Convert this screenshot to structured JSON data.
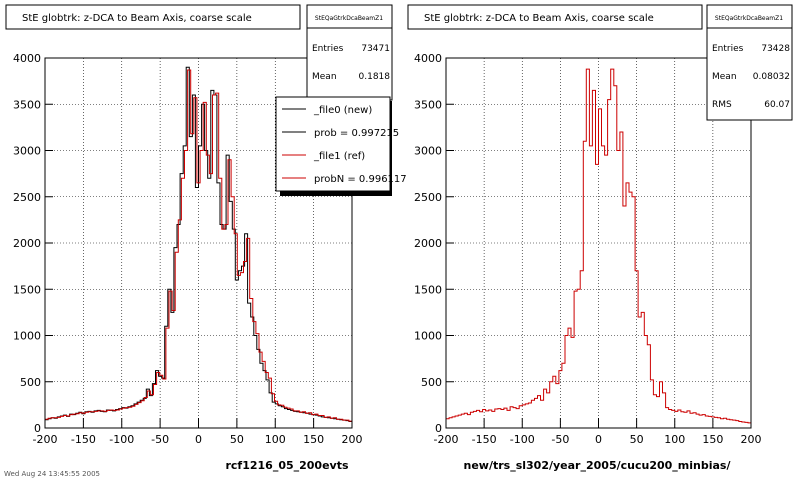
{
  "chart_data": [
    {
      "type": "line",
      "title": "StE globtrk: z-DCA to Beam Axis, coarse scale",
      "stats": {
        "name": "StEQaGtrkDcaBeamZ1",
        "rows": [
          {
            "label": "Entries",
            "value": "73471"
          },
          {
            "label": "Mean",
            "value": "0.1818"
          }
        ]
      },
      "xlabel": "rcf1216_05_200evts",
      "xlim": [
        -200,
        200
      ],
      "ylim": [
        0,
        4000
      ],
      "x_ticks": [
        "-200",
        "-150",
        "-100",
        "-50",
        "0",
        "50",
        "100",
        "150",
        "200"
      ],
      "y_ticks": [
        "0",
        "500",
        "1000",
        "1500",
        "2000",
        "2500",
        "3000",
        "3500",
        "4000"
      ],
      "legend": [
        {
          "label": "_file0 (new)",
          "color": "#000000"
        },
        {
          "label": "prob = 0.997215",
          "color": "#000000"
        },
        {
          "label": "_file1 (ref)",
          "color": "#cc0000"
        },
        {
          "label": "probN = 0.996117",
          "color": "#cc0000"
        }
      ],
      "series": [
        {
          "name": "_file0 (new)",
          "color": "#000000",
          "values": [
            90,
            100,
            110,
            105,
            120,
            130,
            140,
            125,
            150,
            145,
            160,
            170,
            155,
            175,
            180,
            170,
            185,
            190,
            180,
            175,
            195,
            190,
            185,
            200,
            210,
            220,
            215,
            230,
            240,
            260,
            280,
            300,
            320,
            420,
            350,
            480,
            620,
            560,
            540,
            1100,
            1500,
            1250,
            1950,
            2200,
            2750,
            3050,
            3900,
            3150,
            3600,
            2600,
            3050,
            3500,
            3000,
            2700,
            3650,
            3600,
            2650,
            2200,
            2150,
            2950,
            2450,
            2150,
            1600,
            1700,
            1750,
            2100,
            1350,
            1200,
            1000,
            850,
            700,
            620,
            520,
            380,
            280,
            260,
            240,
            230,
            210,
            200,
            190,
            180,
            175,
            170,
            165,
            160,
            150,
            145,
            140,
            130,
            120,
            115,
            110,
            105,
            100,
            95,
            90,
            85,
            80,
            70
          ]
        },
        {
          "name": "_file1 (ref)",
          "color": "#cc0000",
          "values": [
            95,
            105,
            110,
            110,
            115,
            125,
            135,
            130,
            145,
            150,
            155,
            165,
            160,
            170,
            175,
            175,
            180,
            185,
            185,
            180,
            190,
            195,
            190,
            195,
            205,
            215,
            220,
            225,
            235,
            255,
            275,
            295,
            330,
            400,
            360,
            470,
            600,
            570,
            530,
            1080,
            1480,
            1270,
            1900,
            2250,
            2700,
            3000,
            3870,
            3180,
            3570,
            2650,
            3000,
            3520,
            2950,
            2750,
            3600,
            3620,
            2700,
            2150,
            2200,
            2900,
            2500,
            2100,
            1650,
            1680,
            1800,
            2050,
            1400,
            1150,
            1020,
            820,
            720,
            600,
            540,
            370,
            290,
            250,
            245,
            225,
            215,
            205,
            185,
            185,
            170,
            175,
            160,
            165,
            145,
            150,
            135,
            135,
            115,
            120,
            105,
            110,
            95,
            95,
            85,
            85,
            75
          ]
        }
      ]
    },
    {
      "type": "line",
      "title": "StE globtrk: z-DCA to Beam Axis, coarse scale",
      "stats": {
        "name": "StEQaGtrkDcaBeamZ1",
        "rows": [
          {
            "label": "Entries",
            "value": "73428"
          },
          {
            "label": "Mean",
            "value": "0.08032"
          },
          {
            "label": "RMS",
            "value": "60.07"
          }
        ]
      },
      "xlabel": "new/trs_sl302/year_2005/cucu200_minbias/",
      "xlim": [
        -200,
        200
      ],
      "ylim": [
        0,
        4000
      ],
      "x_ticks": [
        "-200",
        "-150",
        "-100",
        "-50",
        "0",
        "50",
        "100",
        "150",
        "200"
      ],
      "y_ticks": [
        "0",
        "500",
        "1000",
        "1500",
        "2000",
        "2500",
        "3000",
        "3500",
        "4000"
      ],
      "series": [
        {
          "name": "",
          "color": "#cc0000",
          "values": [
            100,
            110,
            120,
            130,
            140,
            150,
            160,
            145,
            170,
            180,
            190,
            175,
            200,
            185,
            195,
            180,
            205,
            210,
            200,
            215,
            190,
            230,
            220,
            210,
            240,
            250,
            260,
            270,
            300,
            320,
            350,
            300,
            420,
            380,
            500,
            560,
            480,
            620,
            700,
            1000,
            1080,
            980,
            1480,
            1500,
            1700,
            3100,
            3880,
            3050,
            3650,
            2850,
            3450,
            3050,
            2950,
            3550,
            3880,
            3700,
            3000,
            3200,
            2400,
            2650,
            2550,
            2500,
            1700,
            1200,
            1250,
            1000,
            900,
            520,
            360,
            340,
            500,
            380,
            220,
            200,
            190,
            180,
            195,
            175,
            170,
            185,
            160,
            165,
            150,
            140,
            145,
            130,
            125,
            120,
            115,
            110,
            100,
            105,
            95,
            90,
            85,
            80,
            70,
            65,
            60,
            55
          ]
        }
      ]
    }
  ],
  "footer": "Wed Aug 24 13:45:55 2005"
}
